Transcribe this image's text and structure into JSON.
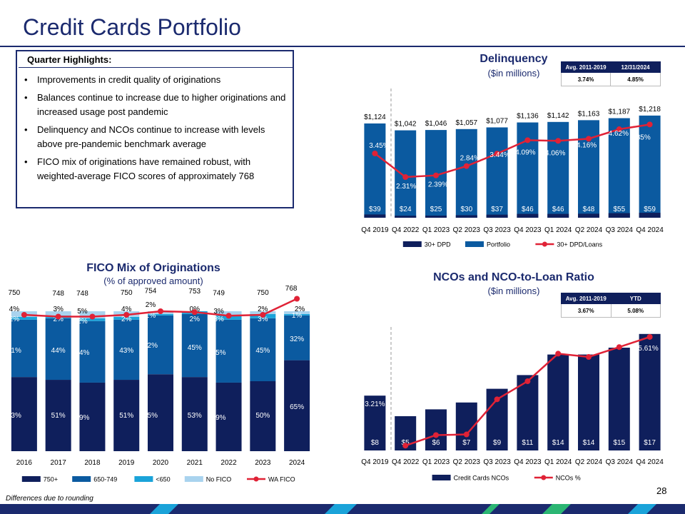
{
  "page": {
    "title": "Credit Cards Portfolio",
    "footnote": "Differences due to rounding",
    "page_number": "28"
  },
  "highlights": {
    "heading": "Quarter Highlights:",
    "bullets": [
      "Improvements in credit quality of originations",
      "Balances continue to increase due to higher originations and increased usage post pandemic",
      "Delinquency and NCOs continue to increase with levels above pre-pandemic benchmark average",
      "FICO mix of originations have remained robust, with weighted-average FICO scores of approximately 768"
    ]
  },
  "delinquency_table": {
    "headers": [
      "Avg. 2011-2019",
      "12/31/2024"
    ],
    "values": [
      "3.74%",
      "4.85%"
    ]
  },
  "nco_table": {
    "headers": [
      "Avg. 2011-2019",
      "YTD"
    ],
    "values": [
      "3.67%",
      "5.08%"
    ]
  },
  "colors": {
    "navy": "#0f1f5c",
    "blue": "#0b5aa0",
    "cyan": "#1aa3d9",
    "light": "#a9d3ee",
    "red": "#e02236",
    "title": "#1b2a6e"
  },
  "chart_data": [
    {
      "id": "delinquency",
      "type": "bar",
      "title": "Delinquency",
      "subtitle": "($in millions)",
      "categories": [
        "Q4 2019",
        "Q4 2022",
        "Q1 2023",
        "Q2 2023",
        "Q3 2023",
        "Q4 2023",
        "Q1 2024",
        "Q2 2024",
        "Q3 2024",
        "Q4 2024"
      ],
      "series": [
        {
          "name": "30+ DPD",
          "values": [
            39,
            24,
            25,
            30,
            37,
            46,
            46,
            48,
            55,
            59
          ],
          "labels": [
            "$39",
            "$24",
            "$25",
            "$30",
            "$37",
            "$46",
            "$46",
            "$48",
            "$55",
            "$59"
          ]
        },
        {
          "name": "Portfolio",
          "values": [
            1124,
            1042,
            1046,
            1057,
            1077,
            1136,
            1142,
            1163,
            1187,
            1218
          ],
          "labels": [
            "$1,124",
            "$1,042",
            "$1,046",
            "$1,057",
            "$1,077",
            "$1,136",
            "$1,142",
            "$1,163",
            "$1,187",
            "$1,218"
          ]
        },
        {
          "name": "30+ DPD/Loans",
          "values": [
            3.45,
            2.31,
            2.39,
            2.84,
            3.44,
            4.09,
            4.06,
            4.16,
            4.62,
            4.85
          ],
          "labels": [
            "3.45%",
            "2.31%",
            "2.39%",
            "2.84%",
            "3.44%",
            "4.09%",
            "4.06%",
            "4.16%",
            "4.62%",
            "4.85%"
          ]
        }
      ],
      "legend": [
        "30+ DPD",
        "Portfolio",
        "30+ DPD/Loans"
      ]
    },
    {
      "id": "fico",
      "type": "bar",
      "stacked": true,
      "title": "FICO Mix of Originations",
      "subtitle": "(% of approved amount)",
      "categories": [
        "2016",
        "2017",
        "2018",
        "2019",
        "2020",
        "2021",
        "2022",
        "2023",
        "2024"
      ],
      "series": [
        {
          "name": "750+",
          "values": [
            53,
            51,
            49,
            51,
            55,
            53,
            49,
            50,
            65
          ]
        },
        {
          "name": "650-749",
          "values": [
            41,
            44,
            44,
            43,
            42,
            45,
            45,
            45,
            32
          ]
        },
        {
          "name": "<650",
          "values": [
            2,
            2,
            2,
            2,
            1,
            2,
            3,
            3,
            1
          ]
        },
        {
          "name": "No FICO",
          "values": [
            4,
            3,
            5,
            4,
            2,
            0,
            3,
            2,
            2
          ]
        },
        {
          "name": "WA FICO",
          "values": [
            750,
            748,
            748,
            750,
            754,
            753,
            749,
            750,
            768
          ]
        }
      ],
      "legend": [
        "750+",
        "650-749",
        "<650",
        "No FICO",
        "WA FICO"
      ]
    },
    {
      "id": "nco",
      "type": "bar",
      "title": "NCOs and NCO-to-Loan Ratio",
      "subtitle": "($in millions)",
      "categories": [
        "Q4 2019",
        "Q4 2022",
        "Q1 2023",
        "Q2 2023",
        "Q3 2023",
        "Q4 2023",
        "Q1 2024",
        "Q2 2024",
        "Q3 2024",
        "Q4 2024"
      ],
      "series": [
        {
          "name": "Credit Cards NCOs",
          "values": [
            8,
            5,
            6,
            7,
            9,
            11,
            14,
            14,
            15,
            17
          ],
          "labels": [
            "$8",
            "$5",
            "$6",
            "$7",
            "$9",
            "$11",
            "$14",
            "$14",
            "$15",
            "$17"
          ]
        },
        {
          "name": "NCOs %",
          "values": [
            3.21,
            2.3,
            2.62,
            2.64,
            3.71,
            4.26,
            5.1,
            5.0,
            5.3,
            5.61
          ],
          "point_labels": [
            "3.21%",
            "",
            "",
            "",
            "",
            "",
            "",
            "",
            "",
            "5.61%"
          ]
        }
      ],
      "legend": [
        "Credit Cards NCOs",
        "NCOs %"
      ]
    }
  ]
}
